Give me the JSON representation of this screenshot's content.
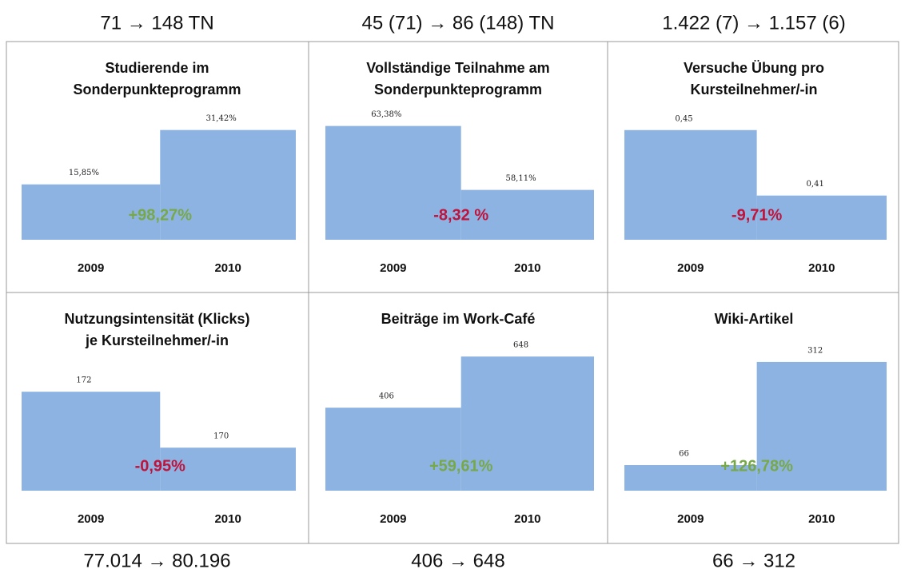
{
  "top_labels": [
    "71 → 148 TN",
    "45 (71) → 86 (148) TN",
    "1.422 (7) → 1.157 (6)"
  ],
  "bottom_labels": [
    "77.014 → 80.196",
    "406 → 648",
    "66 → 312"
  ],
  "chart_data": [
    {
      "type": "bar",
      "title": [
        "Studierende im",
        "Sonderpunkteprogramm"
      ],
      "categories": [
        "2009",
        "2010"
      ],
      "values": [
        15.85,
        31.42
      ],
      "value_labels": [
        "15,85%",
        "31,42%"
      ],
      "ylim": [
        0,
        38.9
      ],
      "color": "#8db3e2",
      "annotation": "+98,27%",
      "annotation_color": "#77a94a"
    },
    {
      "type": "bar",
      "title": [
        "Vollständige Teilnahme am",
        "Sonderpunkteprogramm"
      ],
      "categories": [
        "2009",
        "2010"
      ],
      "values": [
        63.38,
        58.11
      ],
      "value_labels": [
        "63,38%",
        "58,11%"
      ],
      "ylim": [
        54,
        65.2
      ],
      "color": "#8db3e2",
      "annotation": "-8,32 %",
      "annotation_color": "#c0143c"
    },
    {
      "type": "bar",
      "title": [
        "Versuche Übung pro",
        "Kursteilnehmer/-in"
      ],
      "categories": [
        "2009",
        "2010"
      ],
      "values": [
        0.45,
        0.41
      ],
      "value_labels": [
        "0,45",
        "0,41"
      ],
      "ylim": [
        0.383,
        0.466
      ],
      "color": "#8db3e2",
      "annotation": "-9,71%",
      "annotation_color": "#c0143c"
    },
    {
      "type": "bar",
      "title": [
        "Nutzungsintensität (Klicks)",
        "je Kursteilnehmer/-in"
      ],
      "categories": [
        "2009",
        "2010"
      ],
      "values": [
        172,
        170
      ],
      "ylim": [
        168.46,
        173.32
      ],
      "color": "#8db3e2",
      "annotation": "-0,95%",
      "annotation_color": "#c0143c"
    },
    {
      "type": "bar",
      "title": [
        "Beiträge im Work-Café"
      ],
      "categories": [
        "2009",
        "2010"
      ],
      "values": [
        406,
        648
      ],
      "ylim": [
        13,
        656
      ],
      "color": "#8db3e2",
      "annotation": "+59,61%",
      "annotation_color": "#77a94a"
    },
    {
      "type": "bar",
      "title": [
        "Wiki-Artikel"
      ],
      "categories": [
        "2009",
        "2010"
      ],
      "values": [
        66,
        312
      ],
      "ylim": [
        5,
        329
      ],
      "color": "#8db3e2",
      "annotation": "+126,78%",
      "annotation_color": "#77a94a"
    }
  ]
}
